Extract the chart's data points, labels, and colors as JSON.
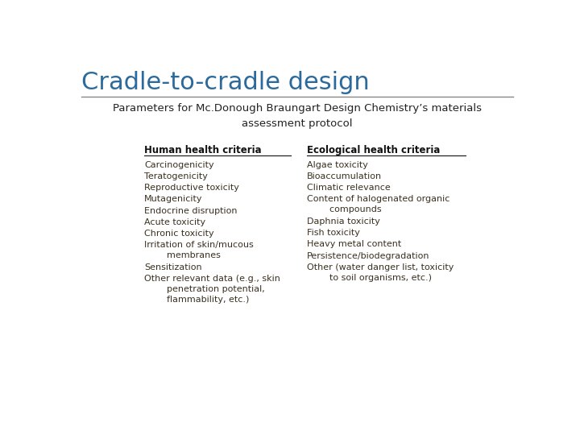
{
  "title": "Cradle-to-cradle design",
  "title_color": "#2B6A9B",
  "subtitle": "Parameters for Mc.Donough Braungart Design Chemistry’s materials\nassessment protocol",
  "subtitle_color": "#222222",
  "bg_color": "#ffffff",
  "separator_color": "#888888",
  "col1_header": "Human health criteria",
  "col2_header": "Ecological health criteria",
  "header_color": "#111111",
  "col1_items": [
    "Carcinogenicity",
    "Teratogenicity",
    "Reproductive toxicity",
    "Mutagenicity",
    "Endocrine disruption",
    "Acute toxicity",
    "Chronic toxicity",
    "Irritation of skin/mucous\n        membranes",
    "Sensitization",
    "Other relevant data (e.g., skin\n        penetration potential,\n        flammability, etc.)"
  ],
  "col2_items": [
    "Algae toxicity",
    "Bioaccumulation",
    "Climatic relevance",
    "Content of halogenated organic\n        compounds",
    "Daphnia toxicity",
    "Fish toxicity",
    "Heavy metal content",
    "Persistence/biodegradation",
    "Other (water danger list, toxicity\n        to soil organisms, etc.)"
  ],
  "item_color": "#3a3020",
  "item_fontsize": 8.0,
  "header_fontsize": 8.5,
  "title_fontsize": 22,
  "subtitle_fontsize": 9.5
}
